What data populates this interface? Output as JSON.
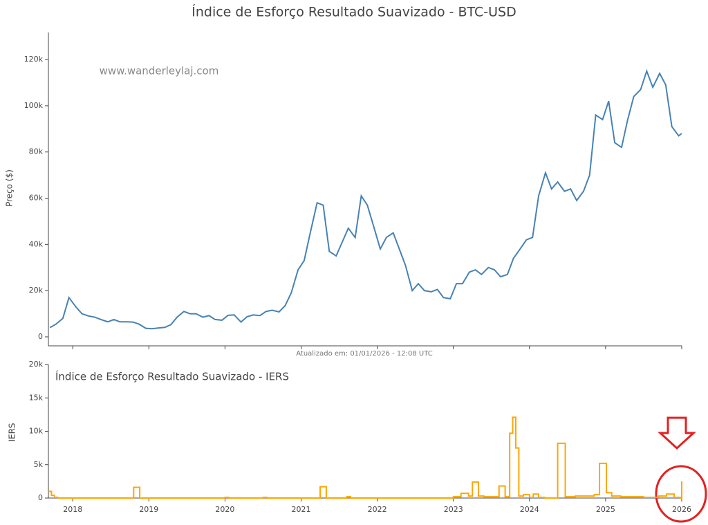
{
  "chart_data": [
    {
      "type": "line",
      "title": "Índice de Esforço Resultado Suavizado - BTC-USD",
      "watermark": "www.wanderleylaj.com",
      "ylabel": "Preço ($)",
      "annotation": "Atualizado em: 01/01/2026 - 12:08 UTC",
      "x": [
        2017.7,
        2017.78,
        2017.87,
        2017.95,
        2018.04,
        2018.12,
        2018.21,
        2018.29,
        2018.37,
        2018.46,
        2018.54,
        2018.62,
        2018.71,
        2018.79,
        2018.87,
        2018.96,
        2019.04,
        2019.12,
        2019.21,
        2019.29,
        2019.37,
        2019.46,
        2019.54,
        2019.62,
        2019.71,
        2019.79,
        2019.87,
        2019.96,
        2020.04,
        2020.12,
        2020.21,
        2020.29,
        2020.37,
        2020.46,
        2020.54,
        2020.62,
        2020.71,
        2020.79,
        2020.87,
        2020.96,
        2021.04,
        2021.12,
        2021.21,
        2021.29,
        2021.37,
        2021.46,
        2021.54,
        2021.62,
        2021.71,
        2021.79,
        2021.87,
        2021.96,
        2022.04,
        2022.12,
        2022.21,
        2022.29,
        2022.37,
        2022.46,
        2022.54,
        2022.62,
        2022.71,
        2022.79,
        2022.87,
        2022.96,
        2023.04,
        2023.12,
        2023.21,
        2023.29,
        2023.37,
        2023.46,
        2023.54,
        2023.62,
        2023.71,
        2023.79,
        2023.87,
        2023.96,
        2024.04,
        2024.12,
        2024.21,
        2024.29,
        2024.37,
        2024.46,
        2024.54,
        2024.62,
        2024.71,
        2024.79,
        2024.87,
        2024.96,
        2025.04,
        2025.12,
        2025.21,
        2025.29,
        2025.37,
        2025.46,
        2025.54,
        2025.62,
        2025.71,
        2025.79,
        2025.87,
        2025.96,
        2026.0
      ],
      "series": [
        {
          "color": "#4682b4",
          "values": [
            4000,
            5500,
            8000,
            17000,
            13000,
            10000,
            9000,
            8500,
            7500,
            6500,
            7500,
            6500,
            6500,
            6400,
            5500,
            3700,
            3500,
            3800,
            4100,
            5300,
            8500,
            11000,
            10000,
            10000,
            8500,
            9200,
            7500,
            7200,
            9300,
            9500,
            6400,
            8700,
            9500,
            9200,
            11000,
            11500,
            10800,
            13500,
            19000,
            29000,
            33000,
            45000,
            58000,
            57000,
            37000,
            35000,
            41000,
            47000,
            43000,
            61000,
            57000,
            47000,
            38000,
            43000,
            45000,
            38000,
            31000,
            20000,
            23000,
            20000,
            19500,
            20500,
            17000,
            16500,
            23000,
            23000,
            28000,
            29000,
            27000,
            30000,
            29000,
            26000,
            27000,
            34000,
            37700,
            42000,
            43000,
            61000,
            71000,
            64000,
            67000,
            63000,
            64000,
            59000,
            63000,
            70000,
            96000,
            94000,
            102000,
            84000,
            82000,
            94000,
            104000,
            107000,
            115000,
            108000,
            114000,
            109000,
            91000,
            87000,
            88000
          ]
        }
      ],
      "xlim": [
        2017.68,
        2026.0
      ],
      "ylim": [
        -3900,
        131700
      ],
      "yticks": [
        0,
        {
          "value": 20000,
          "label": "20k"
        },
        {
          "value": 40000,
          "label": "40k"
        },
        {
          "value": 60000,
          "label": "60k"
        },
        {
          "value": 80000,
          "label": "80k"
        },
        {
          "value": 100000,
          "label": "100k"
        },
        {
          "value": 120000,
          "label": "120k"
        }
      ]
    },
    {
      "type": "line",
      "title": "Índice de Esforço Resultado Suavizado - IERS",
      "ylabel": "IERS",
      "line_shape": "hv",
      "x": [
        2017.68,
        2017.72,
        2017.76,
        2017.8,
        2018.8,
        2018.88,
        2019.5,
        2020.0,
        2020.05,
        2020.5,
        2020.55,
        2021.25,
        2021.33,
        2021.6,
        2021.65,
        2022.5,
        2023.0,
        2023.1,
        2023.2,
        2023.25,
        2023.33,
        2023.4,
        2023.6,
        2023.68,
        2023.74,
        2023.78,
        2023.82,
        2023.86,
        2023.92,
        2024.0,
        2024.05,
        2024.12,
        2024.2,
        2024.37,
        2024.47,
        2024.6,
        2024.85,
        2024.92,
        2025.01,
        2025.08,
        2025.2,
        2025.5,
        2025.7,
        2025.8,
        2025.9,
        2025.98,
        2026.0
      ],
      "series": [
        {
          "color": "#ffa500",
          "values": [
            1000,
            400,
            100,
            0,
            1600,
            0,
            0,
            100,
            0,
            100,
            0,
            1700,
            0,
            200,
            0,
            0,
            200,
            700,
            300,
            2400,
            300,
            200,
            1800,
            200,
            9700,
            12100,
            7500,
            300,
            500,
            100,
            600,
            100,
            0,
            8200,
            200,
            300,
            500,
            5200,
            800,
            300,
            200,
            100,
            300,
            600,
            100,
            0,
            2500
          ]
        }
      ],
      "xlim": [
        2017.68,
        2026.0
      ],
      "xticks": [
        2018,
        2019,
        2020,
        2021,
        2022,
        2023,
        2024,
        2025,
        2026
      ],
      "ylim": [
        0,
        20000
      ],
      "yticks": [
        0,
        {
          "value": 5000,
          "label": "5k"
        },
        {
          "value": 10000,
          "label": "10k"
        },
        {
          "value": 15000,
          "label": "15k"
        },
        {
          "value": 20000,
          "label": "20k"
        }
      ]
    }
  ]
}
